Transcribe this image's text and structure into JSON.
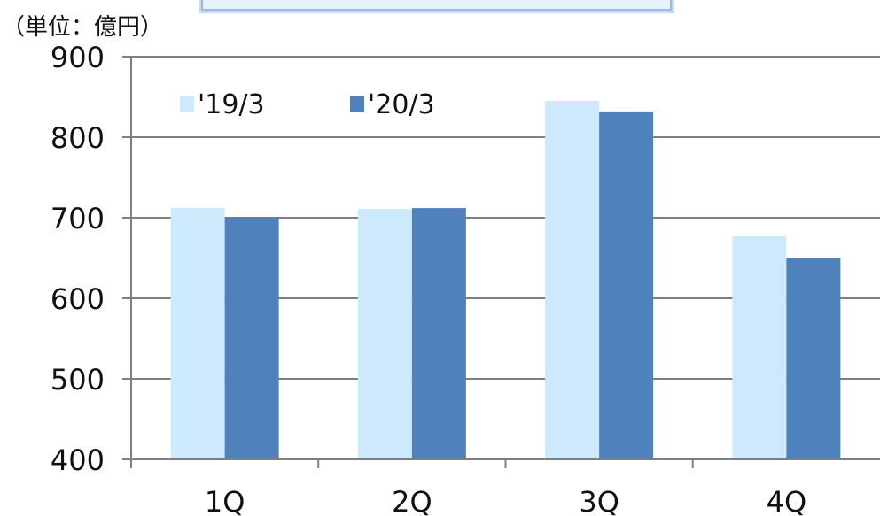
{
  "header": {
    "unit": "（単位：億円）"
  },
  "chart_data": {
    "type": "bar",
    "categories": [
      "1Q",
      "2Q",
      "3Q",
      "4Q"
    ],
    "series": [
      {
        "name": "'19/3",
        "values": [
          712,
          711,
          845,
          677
        ],
        "color": "#cdeafc"
      },
      {
        "name": "'20/3",
        "values": [
          701,
          712,
          832,
          650
        ],
        "color": "#4f81bd"
      }
    ],
    "ylim": [
      400,
      900
    ],
    "yticks": [
      "400",
      "500",
      "600",
      "700",
      "800",
      "900"
    ],
    "grid": true,
    "legend": "top-left",
    "axis_color": "#7f7f7f"
  }
}
